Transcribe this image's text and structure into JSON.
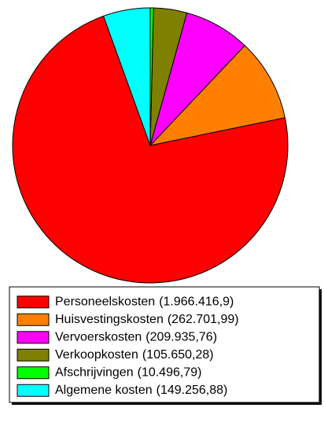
{
  "chart_data": {
    "type": "pie",
    "categories": [
      "Personeelskosten",
      "Huisvestingskosten",
      "Vervoerskosten",
      "Verkoopkosten",
      "Afschrijvingen",
      "Algemene kosten"
    ],
    "values": [
      1966416.9,
      262701.99,
      209935.76,
      105650.28,
      10496.79,
      149256.88
    ],
    "value_labels": [
      "(1.966.416,9)",
      "(262.701,99)",
      "(209.935,76)",
      "(105.650,28)",
      "(10.496,79)",
      "(149.256,88)"
    ],
    "colors": [
      "#ff0000",
      "#ff8000",
      "#ff00ff",
      "#808000",
      "#00ff00",
      "#00ffff"
    ],
    "legend": "bottom"
  }
}
